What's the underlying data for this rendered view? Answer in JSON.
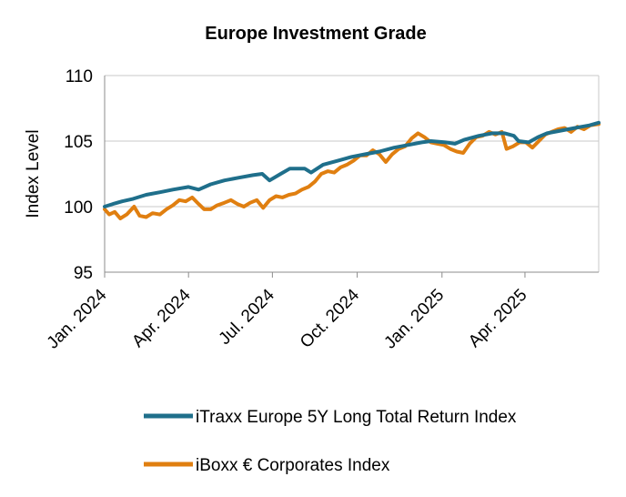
{
  "chart_data": {
    "type": "line",
    "title": "Europe Investment Grade",
    "ylabel": "Index Level",
    "xlabel": "",
    "ylim": [
      95,
      110
    ],
    "yticks": [
      95,
      100,
      105,
      110
    ],
    "x_range": [
      "2024-01-01",
      "2025-06-20"
    ],
    "xticks": [
      {
        "date": "2024-01-01",
        "label": "Jan. 2024"
      },
      {
        "date": "2024-04-01",
        "label": "Apr. 2024"
      },
      {
        "date": "2024-07-01",
        "label": "Jul. 2024"
      },
      {
        "date": "2024-10-01",
        "label": "Oct. 2024"
      },
      {
        "date": "2025-01-01",
        "label": "Jan. 2025"
      },
      {
        "date": "2025-04-01",
        "label": "Apr. 2025"
      }
    ],
    "grid": {
      "horizontal": true,
      "vertical": false
    },
    "legend_position": "bottom",
    "series": [
      {
        "name": "iTraxx Europe 5Y Long Total Return Index",
        "color": "#1f6f8b",
        "points": [
          [
            "2024-01-01",
            100.0
          ],
          [
            "2024-01-10",
            100.2
          ],
          [
            "2024-01-20",
            100.4
          ],
          [
            "2024-02-01",
            100.6
          ],
          [
            "2024-02-15",
            100.9
          ],
          [
            "2024-03-01",
            101.1
          ],
          [
            "2024-03-15",
            101.3
          ],
          [
            "2024-04-01",
            101.5
          ],
          [
            "2024-04-12",
            101.3
          ],
          [
            "2024-04-25",
            101.7
          ],
          [
            "2024-05-10",
            102.0
          ],
          [
            "2024-05-25",
            102.2
          ],
          [
            "2024-06-10",
            102.4
          ],
          [
            "2024-06-20",
            102.5
          ],
          [
            "2024-06-28",
            102.0
          ],
          [
            "2024-07-10",
            102.5
          ],
          [
            "2024-07-20",
            102.9
          ],
          [
            "2024-08-05",
            102.9
          ],
          [
            "2024-08-12",
            102.6
          ],
          [
            "2024-08-25",
            103.2
          ],
          [
            "2024-09-10",
            103.5
          ],
          [
            "2024-09-25",
            103.8
          ],
          [
            "2024-10-10",
            104.0
          ],
          [
            "2024-10-25",
            104.2
          ],
          [
            "2024-11-10",
            104.5
          ],
          [
            "2024-11-25",
            104.7
          ],
          [
            "2024-12-10",
            104.9
          ],
          [
            "2024-12-20",
            105.0
          ],
          [
            "2025-01-05",
            104.9
          ],
          [
            "2025-01-15",
            104.8
          ],
          [
            "2025-01-25",
            105.1
          ],
          [
            "2025-02-10",
            105.4
          ],
          [
            "2025-02-25",
            105.6
          ],
          [
            "2025-03-10",
            105.6
          ],
          [
            "2025-03-20",
            105.4
          ],
          [
            "2025-03-25",
            105.0
          ],
          [
            "2025-04-05",
            104.9
          ],
          [
            "2025-04-15",
            105.3
          ],
          [
            "2025-04-25",
            105.6
          ],
          [
            "2025-05-10",
            105.8
          ],
          [
            "2025-05-25",
            106.0
          ],
          [
            "2025-06-10",
            106.2
          ],
          [
            "2025-06-20",
            106.4
          ]
        ]
      },
      {
        "name": "iBoxx € Corporates Index",
        "color": "#e07f10",
        "points": [
          [
            "2024-01-01",
            99.8
          ],
          [
            "2024-01-06",
            99.4
          ],
          [
            "2024-01-12",
            99.6
          ],
          [
            "2024-01-18",
            99.1
          ],
          [
            "2024-01-25",
            99.4
          ],
          [
            "2024-02-02",
            100.0
          ],
          [
            "2024-02-08",
            99.3
          ],
          [
            "2024-02-15",
            99.2
          ],
          [
            "2024-02-22",
            99.5
          ],
          [
            "2024-03-01",
            99.4
          ],
          [
            "2024-03-08",
            99.8
          ],
          [
            "2024-03-15",
            100.1
          ],
          [
            "2024-03-22",
            100.5
          ],
          [
            "2024-03-29",
            100.4
          ],
          [
            "2024-04-05",
            100.7
          ],
          [
            "2024-04-12",
            100.2
          ],
          [
            "2024-04-18",
            99.8
          ],
          [
            "2024-04-25",
            99.8
          ],
          [
            "2024-05-02",
            100.1
          ],
          [
            "2024-05-10",
            100.3
          ],
          [
            "2024-05-17",
            100.5
          ],
          [
            "2024-05-24",
            100.2
          ],
          [
            "2024-05-31",
            100.0
          ],
          [
            "2024-06-07",
            100.3
          ],
          [
            "2024-06-14",
            100.5
          ],
          [
            "2024-06-21",
            99.9
          ],
          [
            "2024-06-28",
            100.5
          ],
          [
            "2024-07-05",
            100.8
          ],
          [
            "2024-07-12",
            100.7
          ],
          [
            "2024-07-19",
            100.9
          ],
          [
            "2024-07-26",
            101.0
          ],
          [
            "2024-08-02",
            101.3
          ],
          [
            "2024-08-09",
            101.5
          ],
          [
            "2024-08-16",
            101.9
          ],
          [
            "2024-08-23",
            102.5
          ],
          [
            "2024-08-30",
            102.7
          ],
          [
            "2024-09-06",
            102.6
          ],
          [
            "2024-09-13",
            103.0
          ],
          [
            "2024-09-20",
            103.2
          ],
          [
            "2024-09-27",
            103.5
          ],
          [
            "2024-10-04",
            103.9
          ],
          [
            "2024-10-11",
            103.9
          ],
          [
            "2024-10-18",
            104.3
          ],
          [
            "2024-10-25",
            104.0
          ],
          [
            "2024-11-01",
            103.4
          ],
          [
            "2024-11-08",
            104.0
          ],
          [
            "2024-11-15",
            104.4
          ],
          [
            "2024-11-22",
            104.6
          ],
          [
            "2024-11-29",
            105.2
          ],
          [
            "2024-12-06",
            105.6
          ],
          [
            "2024-12-13",
            105.3
          ],
          [
            "2024-12-20",
            104.9
          ],
          [
            "2024-12-27",
            104.8
          ],
          [
            "2025-01-03",
            104.7
          ],
          [
            "2025-01-10",
            104.4
          ],
          [
            "2025-01-17",
            104.2
          ],
          [
            "2025-01-24",
            104.1
          ],
          [
            "2025-01-31",
            104.8
          ],
          [
            "2025-02-07",
            105.3
          ],
          [
            "2025-02-14",
            105.4
          ],
          [
            "2025-02-21",
            105.7
          ],
          [
            "2025-02-28",
            105.5
          ],
          [
            "2025-03-07",
            105.7
          ],
          [
            "2025-03-12",
            104.4
          ],
          [
            "2025-03-19",
            104.6
          ],
          [
            "2025-03-26",
            104.9
          ],
          [
            "2025-04-02",
            104.9
          ],
          [
            "2025-04-09",
            104.5
          ],
          [
            "2025-04-16",
            105.0
          ],
          [
            "2025-04-23",
            105.5
          ],
          [
            "2025-04-30",
            105.7
          ],
          [
            "2025-05-07",
            105.9
          ],
          [
            "2025-05-14",
            106.0
          ],
          [
            "2025-05-21",
            105.7
          ],
          [
            "2025-05-28",
            106.1
          ],
          [
            "2025-06-04",
            105.9
          ],
          [
            "2025-06-11",
            106.2
          ],
          [
            "2025-06-20",
            106.3
          ]
        ]
      }
    ]
  }
}
